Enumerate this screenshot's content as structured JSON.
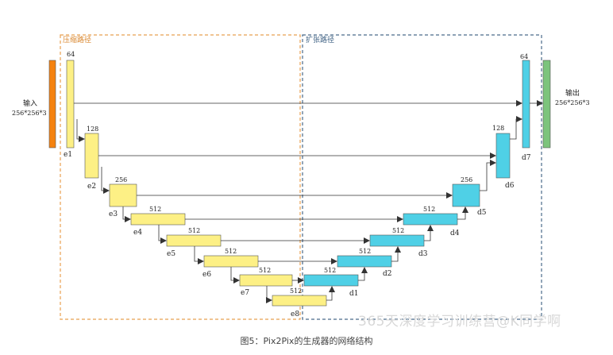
{
  "regions": {
    "compress_label": "压缩路径",
    "expand_label": "扩张路径"
  },
  "input": {
    "label": "输入",
    "shape": "256*256*3"
  },
  "output": {
    "label": "输出",
    "shape": "256*256*3"
  },
  "encoder": [
    {
      "name": "e1",
      "channels": "64"
    },
    {
      "name": "e2",
      "channels": "128"
    },
    {
      "name": "e3",
      "channels": "256"
    },
    {
      "name": "e4",
      "channels": "512"
    },
    {
      "name": "e5",
      "channels": "512"
    },
    {
      "name": "e6",
      "channels": "512"
    },
    {
      "name": "e7",
      "channels": "512"
    },
    {
      "name": "e8",
      "channels": "512"
    }
  ],
  "decoder": [
    {
      "name": "d1",
      "channels": "512"
    },
    {
      "name": "d2",
      "channels": "512"
    },
    {
      "name": "d3",
      "channels": "512"
    },
    {
      "name": "d4",
      "channels": "512"
    },
    {
      "name": "d5",
      "channels": "256"
    },
    {
      "name": "d6",
      "channels": "128"
    },
    {
      "name": "d7",
      "channels": "64"
    }
  ],
  "colors": {
    "input": "#f5820f",
    "output": "#7cc47c",
    "encoder": "#fdf085",
    "decoder": "#4fd0e6",
    "compress_border": "#e8a050",
    "expand_border": "#4a6a8a",
    "arrow": "#333333"
  },
  "caption": "图5：Pix2Pix的生成器的网络结构",
  "watermark": "365天深度学习训练营@K同学啊"
}
